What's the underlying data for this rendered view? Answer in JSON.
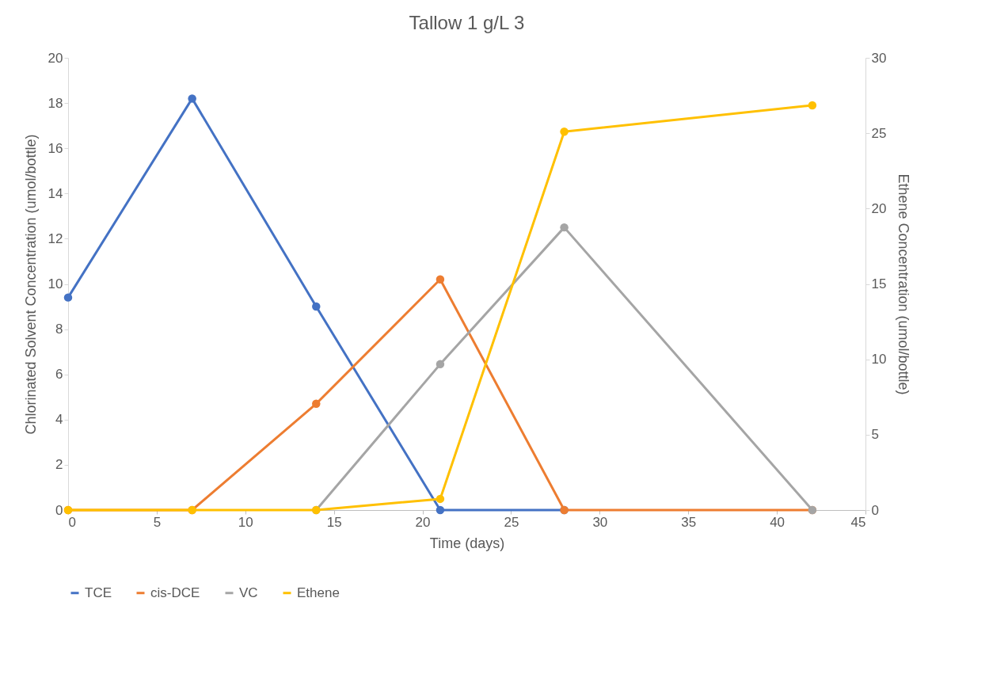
{
  "chart_data": {
    "type": "line",
    "title": "Tallow 1 g/L 3",
    "xlabel": "Time (days)",
    "ylabel": "Chlorinated Solvent Concentration (umol/bottle)",
    "y2label": "Ethene Concentration (umol/bottle)",
    "x": [
      0,
      7,
      14,
      21,
      28,
      42
    ],
    "series": [
      {
        "name": "TCE",
        "color": "#4472c4",
        "values": [
          9.4,
          18.2,
          9.0,
          0,
          0,
          null
        ]
      },
      {
        "name": "cis-DCE",
        "color": "#ed7d31",
        "values": [
          0,
          0,
          4.7,
          10.2,
          0,
          0
        ]
      },
      {
        "name": "VC",
        "color": "#a5a5a5",
        "values": [
          null,
          null,
          0,
          6.45,
          12.5,
          0
        ]
      },
      {
        "name": "Ethene",
        "color": "#ffc000",
        "axis": "y2",
        "values": [
          0,
          0,
          0,
          0.74,
          25.1,
          26.85
        ]
      }
    ],
    "xlim": [
      0,
      45
    ],
    "xticks": [
      0,
      5,
      10,
      15,
      20,
      25,
      30,
      35,
      40,
      45
    ],
    "ylim": [
      0,
      20
    ],
    "yticks": [
      0,
      2,
      4,
      6,
      8,
      10,
      12,
      14,
      16,
      18,
      20
    ],
    "y2lim": [
      0,
      30
    ],
    "y2ticks": [
      0,
      5,
      10,
      15,
      20,
      25,
      30
    ],
    "grid": false,
    "legend": "bottom",
    "marker": "circle",
    "line_style": "solid"
  }
}
